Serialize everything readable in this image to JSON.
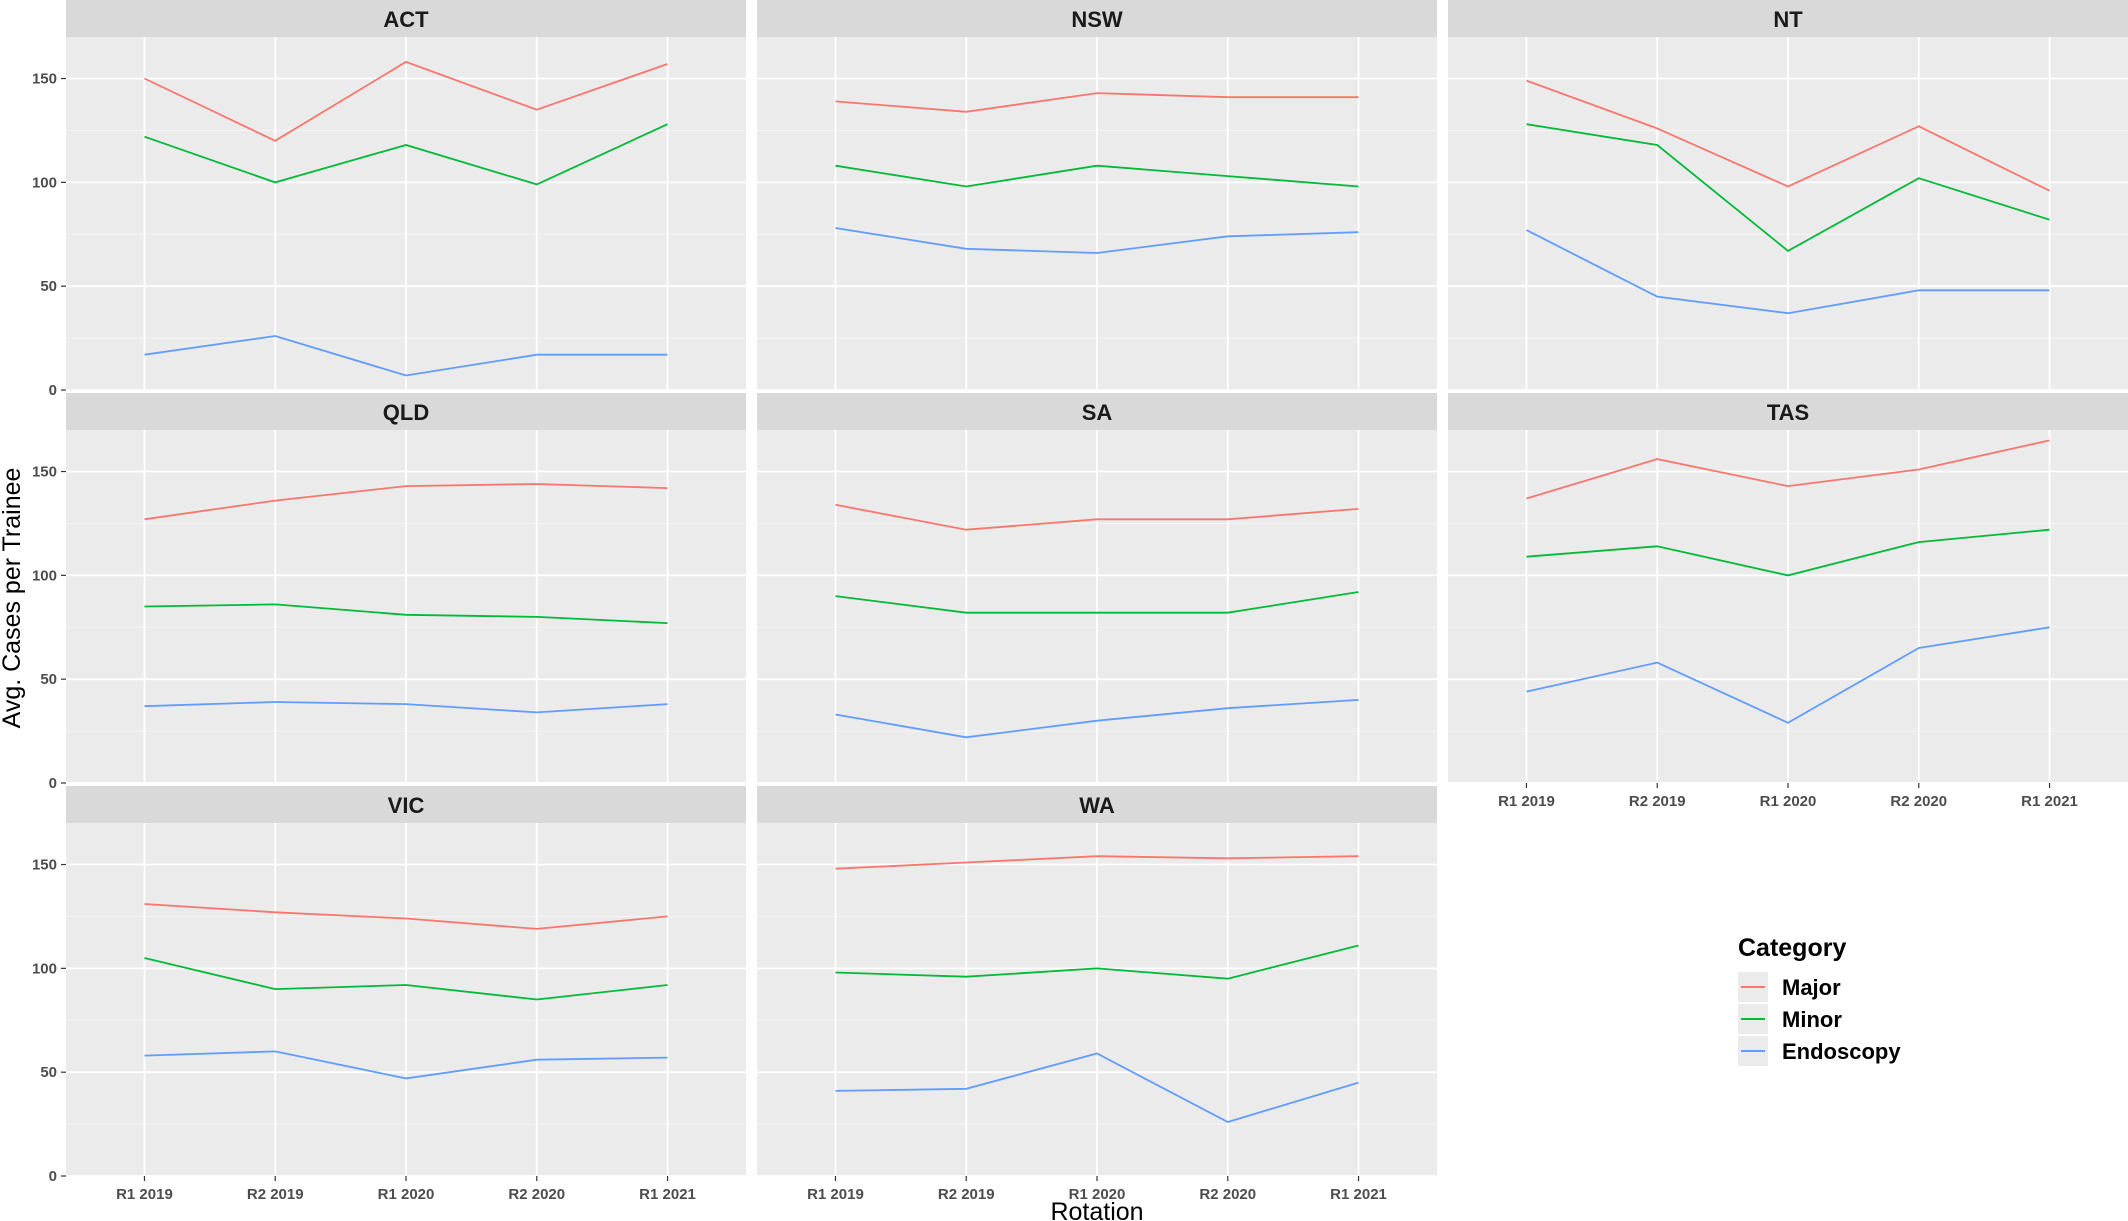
{
  "chart_data": {
    "type": "line",
    "facet_layout": "3 columns, 3 rows, legend bottom-right",
    "xlabel": "Rotation",
    "ylabel": "Avg. Cases per Trainee",
    "categories": [
      "R1 2019",
      "R2 2019",
      "R1 2020",
      "R2 2020",
      "R1 2021"
    ],
    "yticks": [
      0,
      50,
      100,
      150
    ],
    "ylim": [
      0,
      170
    ],
    "grid": true,
    "legend": {
      "title": "Category",
      "position": "bottom-right",
      "items": [
        {
          "label": "Major",
          "color": "#F8766D"
        },
        {
          "label": "Minor",
          "color": "#00BA38"
        },
        {
          "label": "Endoscopy",
          "color": "#619CFF"
        }
      ]
    },
    "facets": [
      {
        "name": "ACT",
        "series": [
          {
            "name": "Major",
            "values": [
              150,
              120,
              158,
              135,
              157
            ]
          },
          {
            "name": "Minor",
            "values": [
              122,
              100,
              118,
              99,
              128
            ]
          },
          {
            "name": "Endoscopy",
            "values": [
              17,
              26,
              7,
              17,
              17
            ]
          }
        ]
      },
      {
        "name": "NSW",
        "series": [
          {
            "name": "Major",
            "values": [
              139,
              134,
              143,
              141,
              141
            ]
          },
          {
            "name": "Minor",
            "values": [
              108,
              98,
              108,
              103,
              98
            ]
          },
          {
            "name": "Endoscopy",
            "values": [
              78,
              68,
              66,
              74,
              76
            ]
          }
        ]
      },
      {
        "name": "NT",
        "series": [
          {
            "name": "Major",
            "values": [
              149,
              126,
              98,
              127,
              96
            ]
          },
          {
            "name": "Minor",
            "values": [
              128,
              118,
              67,
              102,
              82
            ]
          },
          {
            "name": "Endoscopy",
            "values": [
              77,
              45,
              37,
              48,
              48
            ]
          }
        ]
      },
      {
        "name": "QLD",
        "series": [
          {
            "name": "Major",
            "values": [
              127,
              136,
              143,
              144,
              142
            ]
          },
          {
            "name": "Minor",
            "values": [
              85,
              86,
              81,
              80,
              77
            ]
          },
          {
            "name": "Endoscopy",
            "values": [
              37,
              39,
              38,
              34,
              38
            ]
          }
        ]
      },
      {
        "name": "SA",
        "series": [
          {
            "name": "Major",
            "values": [
              134,
              122,
              127,
              127,
              132
            ]
          },
          {
            "name": "Minor",
            "values": [
              90,
              82,
              82,
              82,
              92
            ]
          },
          {
            "name": "Endoscopy",
            "values": [
              33,
              22,
              30,
              36,
              40
            ]
          }
        ]
      },
      {
        "name": "TAS",
        "series": [
          {
            "name": "Major",
            "values": [
              137,
              156,
              143,
              151,
              165
            ]
          },
          {
            "name": "Minor",
            "values": [
              109,
              114,
              100,
              116,
              122
            ]
          },
          {
            "name": "Endoscopy",
            "values": [
              44,
              58,
              29,
              65,
              75
            ]
          }
        ]
      },
      {
        "name": "VIC",
        "series": [
          {
            "name": "Major",
            "values": [
              131,
              127,
              124,
              119,
              125
            ]
          },
          {
            "name": "Minor",
            "values": [
              105,
              90,
              92,
              85,
              92
            ]
          },
          {
            "name": "Endoscopy",
            "values": [
              58,
              60,
              47,
              56,
              57
            ]
          }
        ]
      },
      {
        "name": "WA",
        "series": [
          {
            "name": "Major",
            "values": [
              148,
              151,
              154,
              153,
              154
            ]
          },
          {
            "name": "Minor",
            "values": [
              98,
              96,
              100,
              95,
              111
            ]
          },
          {
            "name": "Endoscopy",
            "values": [
              41,
              42,
              59,
              26,
              45
            ]
          }
        ]
      }
    ]
  }
}
